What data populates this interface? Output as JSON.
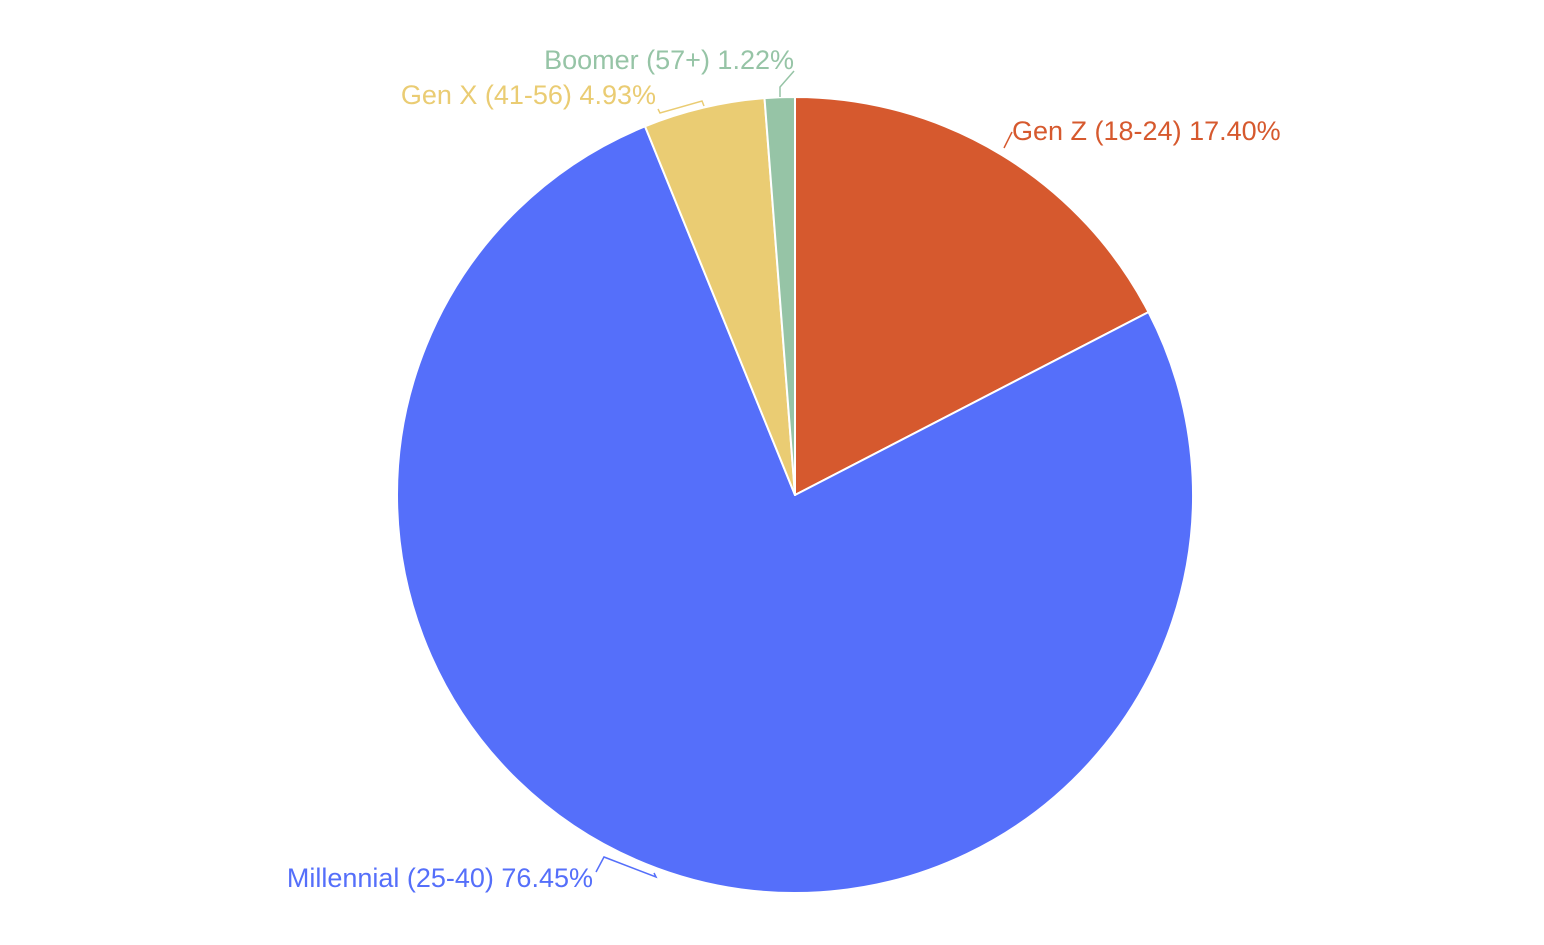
{
  "chart_data": {
    "type": "pie",
    "title": "",
    "start_angle_deg": 0,
    "direction": "clockwise",
    "slice_border_color": "#ffffff",
    "slices": [
      {
        "name": "Gen Z (18-24)",
        "value": 17.4,
        "label": "Gen Z (18-24) 17.40%",
        "color": "#D6592E"
      },
      {
        "name": "Millennial (25-40)",
        "value": 76.45,
        "label": "Millennial (25-40) 76.45%",
        "color": "#556FFA"
      },
      {
        "name": "Gen X (41-56)",
        "value": 4.93,
        "label": "Gen X (41-56) 4.93%",
        "color": "#EACC73"
      },
      {
        "name": "Boomer (57+)",
        "value": 1.22,
        "label": "Boomer (57+) 1.22%",
        "color": "#96C4A6"
      }
    ]
  }
}
